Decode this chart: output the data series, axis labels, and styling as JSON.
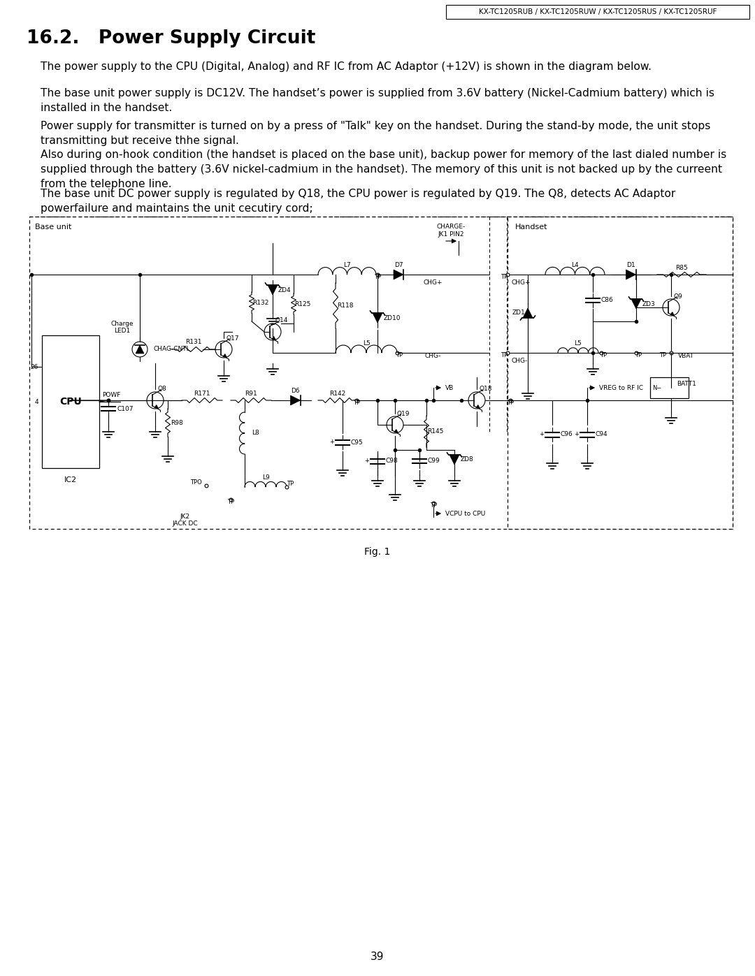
{
  "header_text": "KX-TC1205RUB / KX-TC1205RUW / KX-TC1205RUS / KX-TC1205RUF",
  "section_title": "16.2.   Power Supply Circuit",
  "para1": "The power supply to the CPU (Digital, Analog) and RF IC from AC Adaptor (+12V) is shown in the diagram below.",
  "para2": "The base unit power supply is DC12V. The handset’s power is supplied from 3.6V battery (Nickel-Cadmium battery) which is\ninstalled in the handset.",
  "para3": "Power supply for transmitter is turned on by a press of \"Talk\" key on the handset. During the stand-by mode, the unit stops\ntransmitting but receive thhe signal.",
  "para4": "Also during on-hook condition (the handset is placed on the base unit), backup power for memory of the last dialed number is\nsupplied through the battery (3.6V nickel-cadmium in the handset). The memory of this unit is not backed up by the curreent\nfrom the telephone line.",
  "para5": "The base unit DC power supply is regulated by Q18, the CPU power is regulated by Q19. The Q8, detects AC Adaptor\npowerfailure and maintains the unit cecutiry cord;",
  "fig_caption": "Fig. 1",
  "page_number": "39",
  "bg_color": "#ffffff",
  "text_color": "#000000"
}
